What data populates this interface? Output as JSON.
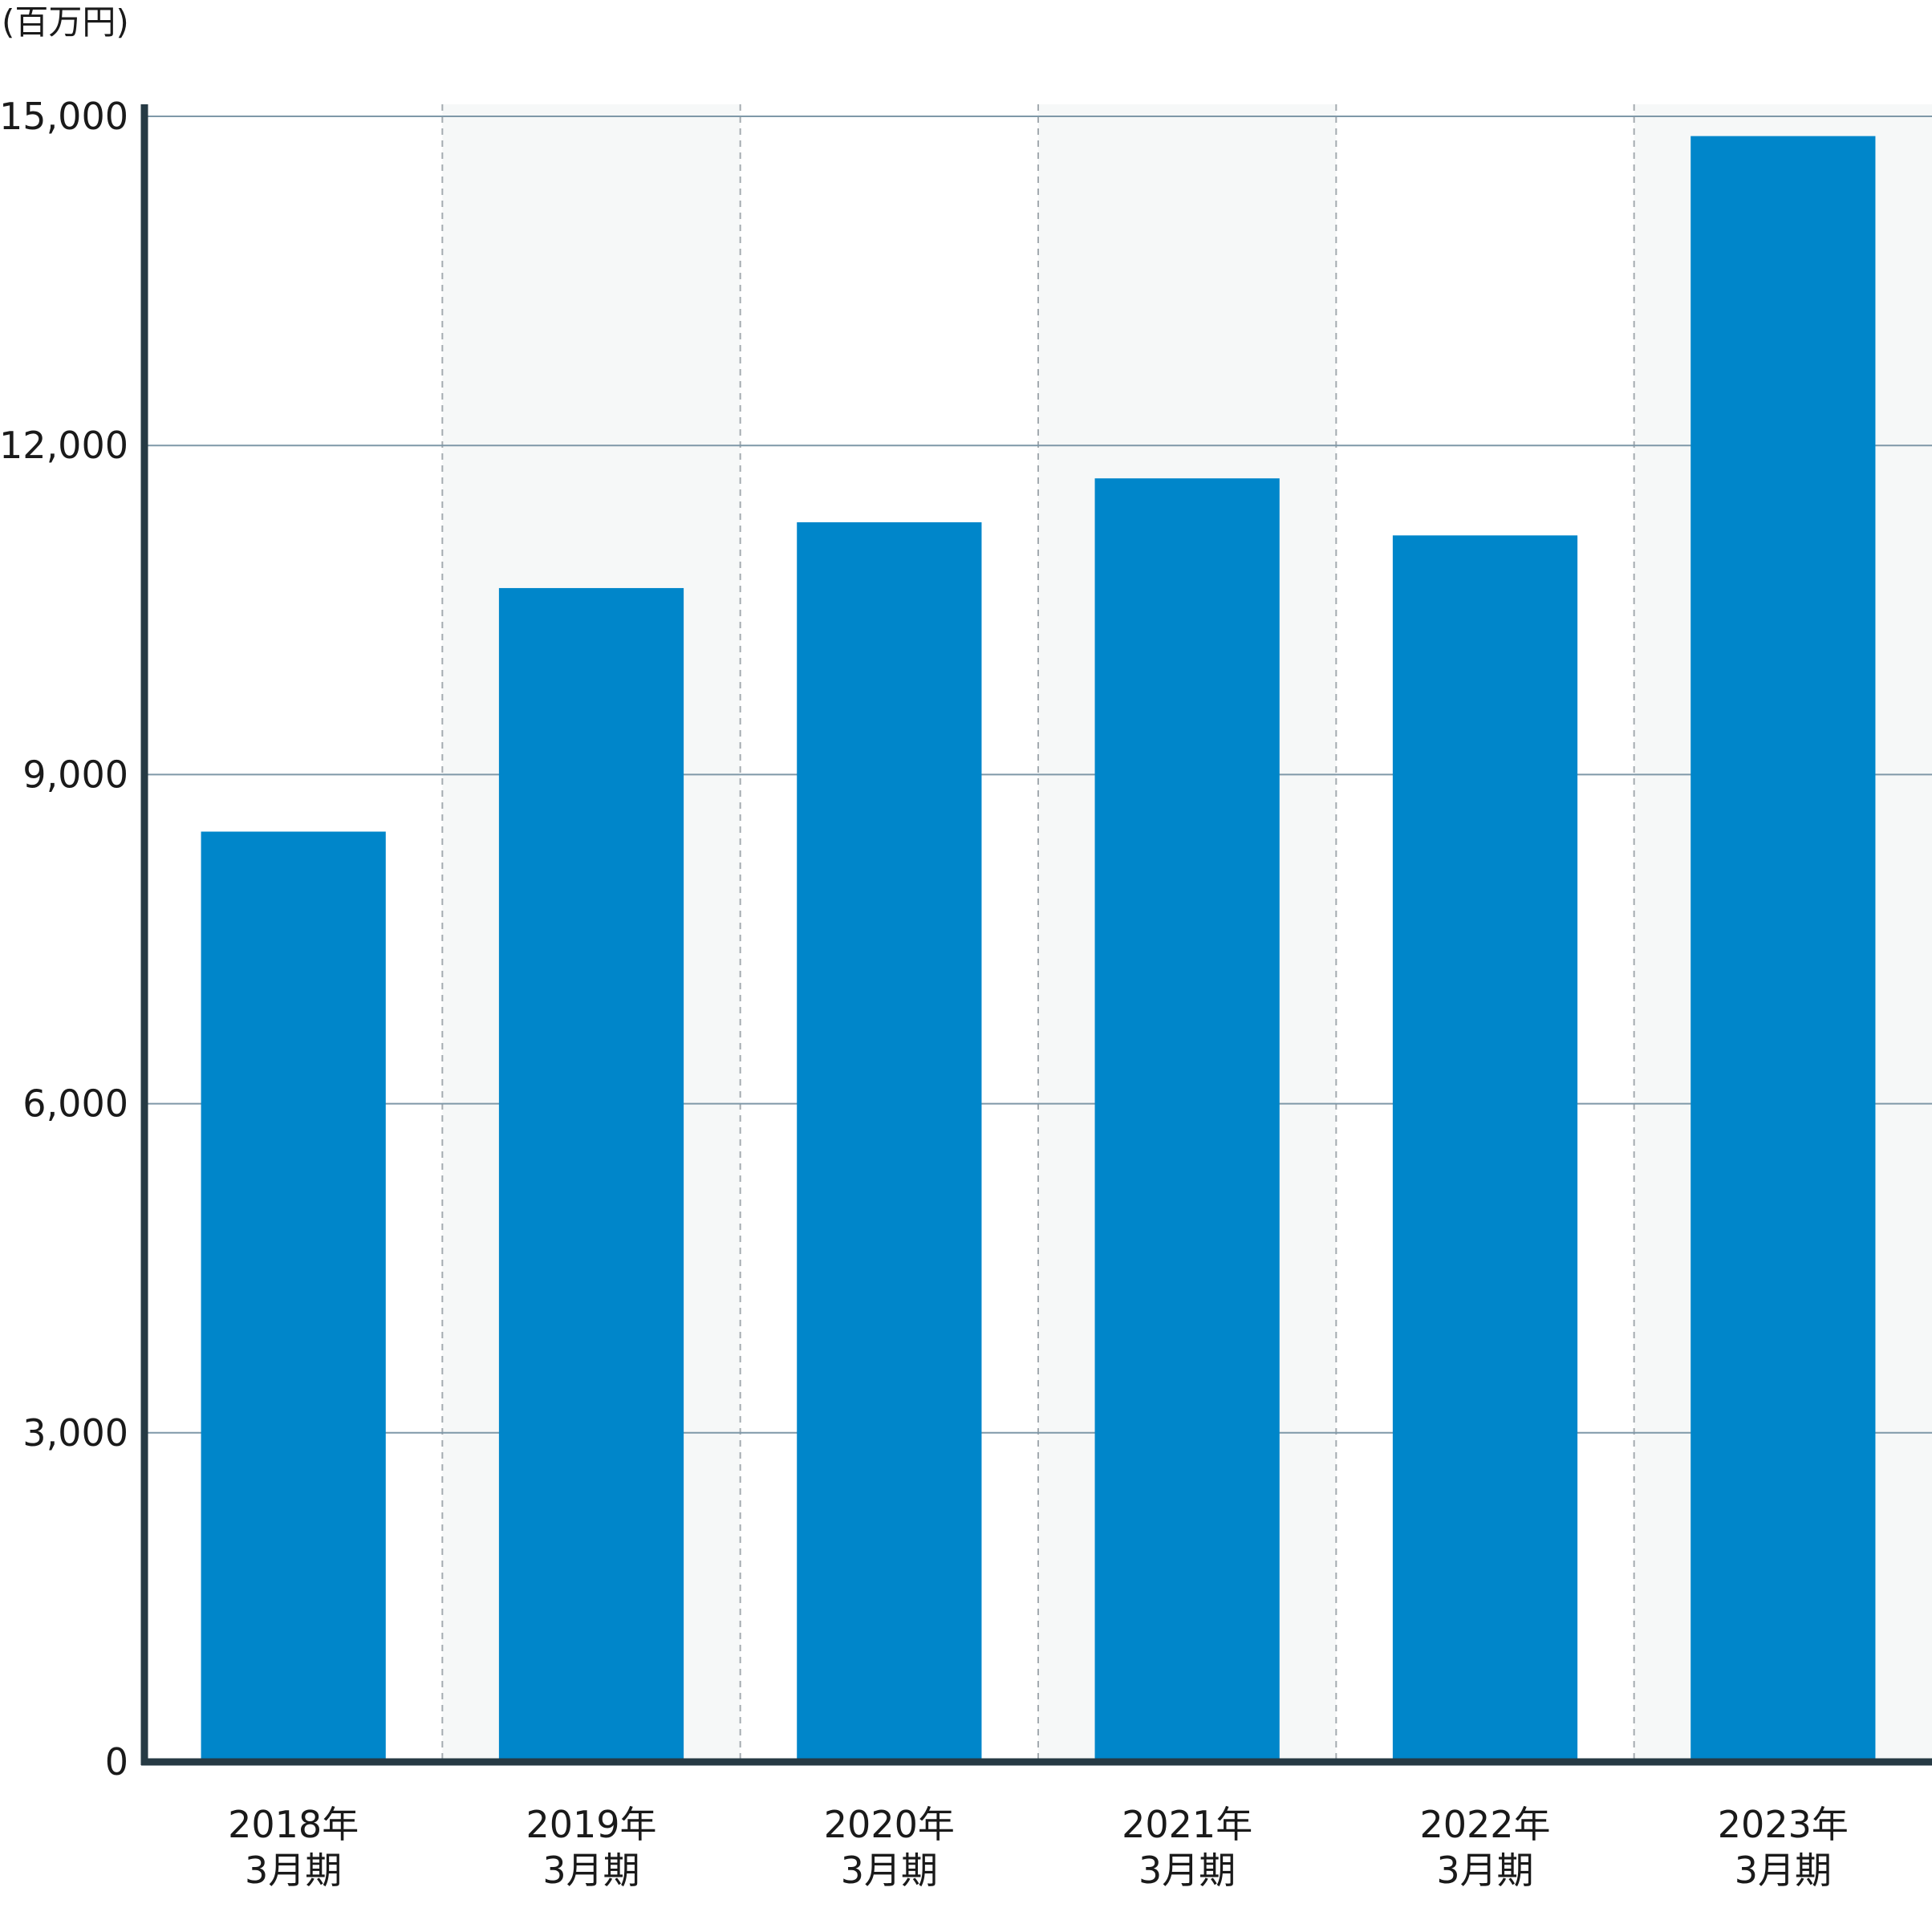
{
  "chart_data": {
    "type": "bar",
    "unit_label": "(百万円)",
    "categories": [
      [
        "2018年",
        "3月期"
      ],
      [
        "2019年",
        "3月期"
      ],
      [
        "2020年",
        "3月期"
      ],
      [
        "2021年",
        "3月期"
      ],
      [
        "2022年",
        "3月期"
      ],
      [
        "2023年",
        "3月期"
      ]
    ],
    "values": [
      8480,
      10700,
      11300,
      11700,
      11180,
      14820
    ],
    "yticks": [
      0,
      3000,
      6000,
      9000,
      12000,
      15000
    ],
    "ytick_labels": [
      "0",
      "3,000",
      "6,000",
      "9,000",
      "12,000",
      "15,000"
    ],
    "ylim": [
      0,
      15000
    ],
    "grid": true,
    "colors": {
      "bar": "#0086ca",
      "axis": "#263a44",
      "gridline": "#7f98a8",
      "band": "#f6f8f8",
      "divider": "#a4abb0"
    }
  }
}
